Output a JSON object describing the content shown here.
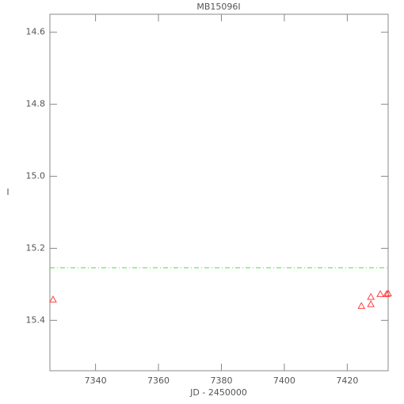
{
  "chart_data": {
    "type": "scatter",
    "title": "MB15096I",
    "xlabel": "JD - 2450000",
    "ylabel": "I",
    "series": [
      {
        "name": null,
        "color": "#ff4040",
        "marker": "triangle-open",
        "x": [
          7326.5,
          7424.5,
          7427.5,
          7427.5,
          7430.5,
          7432.5,
          7433
        ],
        "values": [
          15.342,
          15.36,
          15.335,
          15.355,
          15.327,
          15.327,
          15.325
        ]
      }
    ],
    "reference_line": {
      "value": 15.254,
      "color": "#40e040",
      "style": "dashed"
    },
    "xlim": [
      7325.5,
      7433
    ],
    "xticks": [
      7340,
      7360,
      7380,
      7400,
      7420
    ],
    "ylim": [
      14.55,
      15.54
    ],
    "y_reversed": true,
    "yticks": [
      14.6,
      14.8,
      {
        "value": 15,
        "label": "15.0"
      },
      15.2,
      15.4
    ]
  }
}
